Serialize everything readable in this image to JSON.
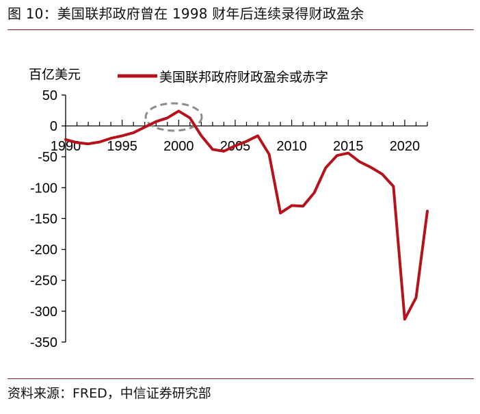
{
  "figure": {
    "title": "图 10：美国联邦政府曾在 1998 财年后连续录得财政盈余",
    "source": "资料来源：FRED，中信证券研究部",
    "accent_color": "#b5121b",
    "rule_color": "#8b1a1a",
    "highlight_color": "#8c8c8c"
  },
  "chart_data": {
    "type": "line",
    "title": "美国联邦政府曾在 1998 财年后连续录得财政盈余",
    "ylabel": "百亿美元",
    "xlabel": "",
    "ylim": [
      -350,
      50
    ],
    "yticks": [
      50,
      0,
      -50,
      -100,
      -150,
      -200,
      -250,
      -300,
      -350
    ],
    "xlim": [
      1990,
      2022
    ],
    "xticks": [
      1990,
      1995,
      2000,
      2005,
      2010,
      2015,
      2020
    ],
    "grid": false,
    "legend_position": "top",
    "annotations": [
      {
        "type": "dashed-ellipse",
        "target_range": [
          1998,
          2001
        ],
        "label": "surplus period highlight"
      }
    ],
    "x": [
      1990,
      1991,
      1992,
      1993,
      1994,
      1995,
      1996,
      1997,
      1998,
      1999,
      2000,
      2001,
      2002,
      2003,
      2004,
      2005,
      2006,
      2007,
      2008,
      2009,
      2010,
      2011,
      2012,
      2013,
      2014,
      2015,
      2016,
      2017,
      2018,
      2019,
      2020,
      2021,
      2022
    ],
    "series": [
      {
        "name": "美国联邦政府财政盈余或赤字",
        "color": "#b5121b",
        "values": [
          -22,
          -27,
          -29,
          -26,
          -20,
          -16,
          -11,
          -2,
          7,
          13,
          24,
          13,
          -16,
          -38,
          -41,
          -32,
          -25,
          -16,
          -46,
          -141,
          -129,
          -130,
          -108,
          -68,
          -48,
          -44,
          -58,
          -67,
          -78,
          -98,
          -313,
          -278,
          -138
        ]
      }
    ]
  }
}
